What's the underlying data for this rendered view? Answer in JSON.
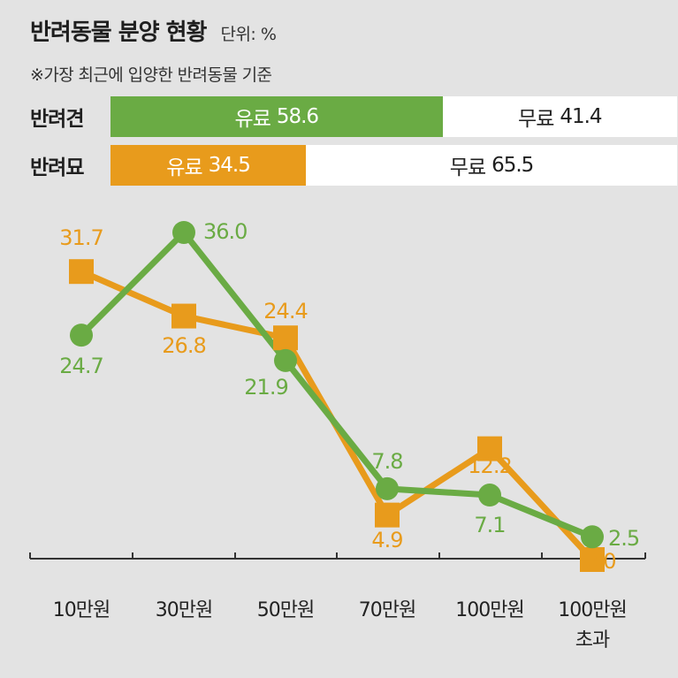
{
  "title": "반려동물 분양 현황",
  "unit": "단위: %",
  "note": "※가장 최근에 입양한 반려동물 기준",
  "colors": {
    "dog": "#6aab44",
    "cat": "#e89b1c",
    "background": "#e3e3e3",
    "axis": "#333333"
  },
  "share": {
    "dog": {
      "label": "반려견",
      "paid_label": "유료",
      "paid_value": "58.6",
      "free_label": "무료",
      "free_value": "41.4"
    },
    "cat": {
      "label": "반려묘",
      "paid_label": "유료",
      "paid_value": "34.5",
      "free_label": "무료",
      "free_value": "65.5"
    }
  },
  "chart_data": {
    "type": "line",
    "categories": [
      "10만원",
      "30만원",
      "50만원",
      "70만원",
      "100만원",
      "100만원\n초과"
    ],
    "series": [
      {
        "key": "cat",
        "marker": "square",
        "color": "#e89b1c",
        "values": [
          31.7,
          26.8,
          24.4,
          4.9,
          12.2,
          0.0
        ]
      },
      {
        "key": "dog",
        "marker": "circle",
        "color": "#6aab44",
        "values": [
          24.7,
          36.0,
          21.9,
          7.8,
          7.1,
          2.5
        ]
      }
    ],
    "data_labels": {
      "cat": [
        "31.7",
        "26.8",
        "24.4",
        "4.9",
        "12.2",
        "0.0"
      ],
      "dog": [
        "24.7",
        "36.0",
        "21.9",
        "7.8",
        "7.1",
        "2.5"
      ]
    },
    "ylim": [
      0,
      40
    ],
    "grid": false
  }
}
